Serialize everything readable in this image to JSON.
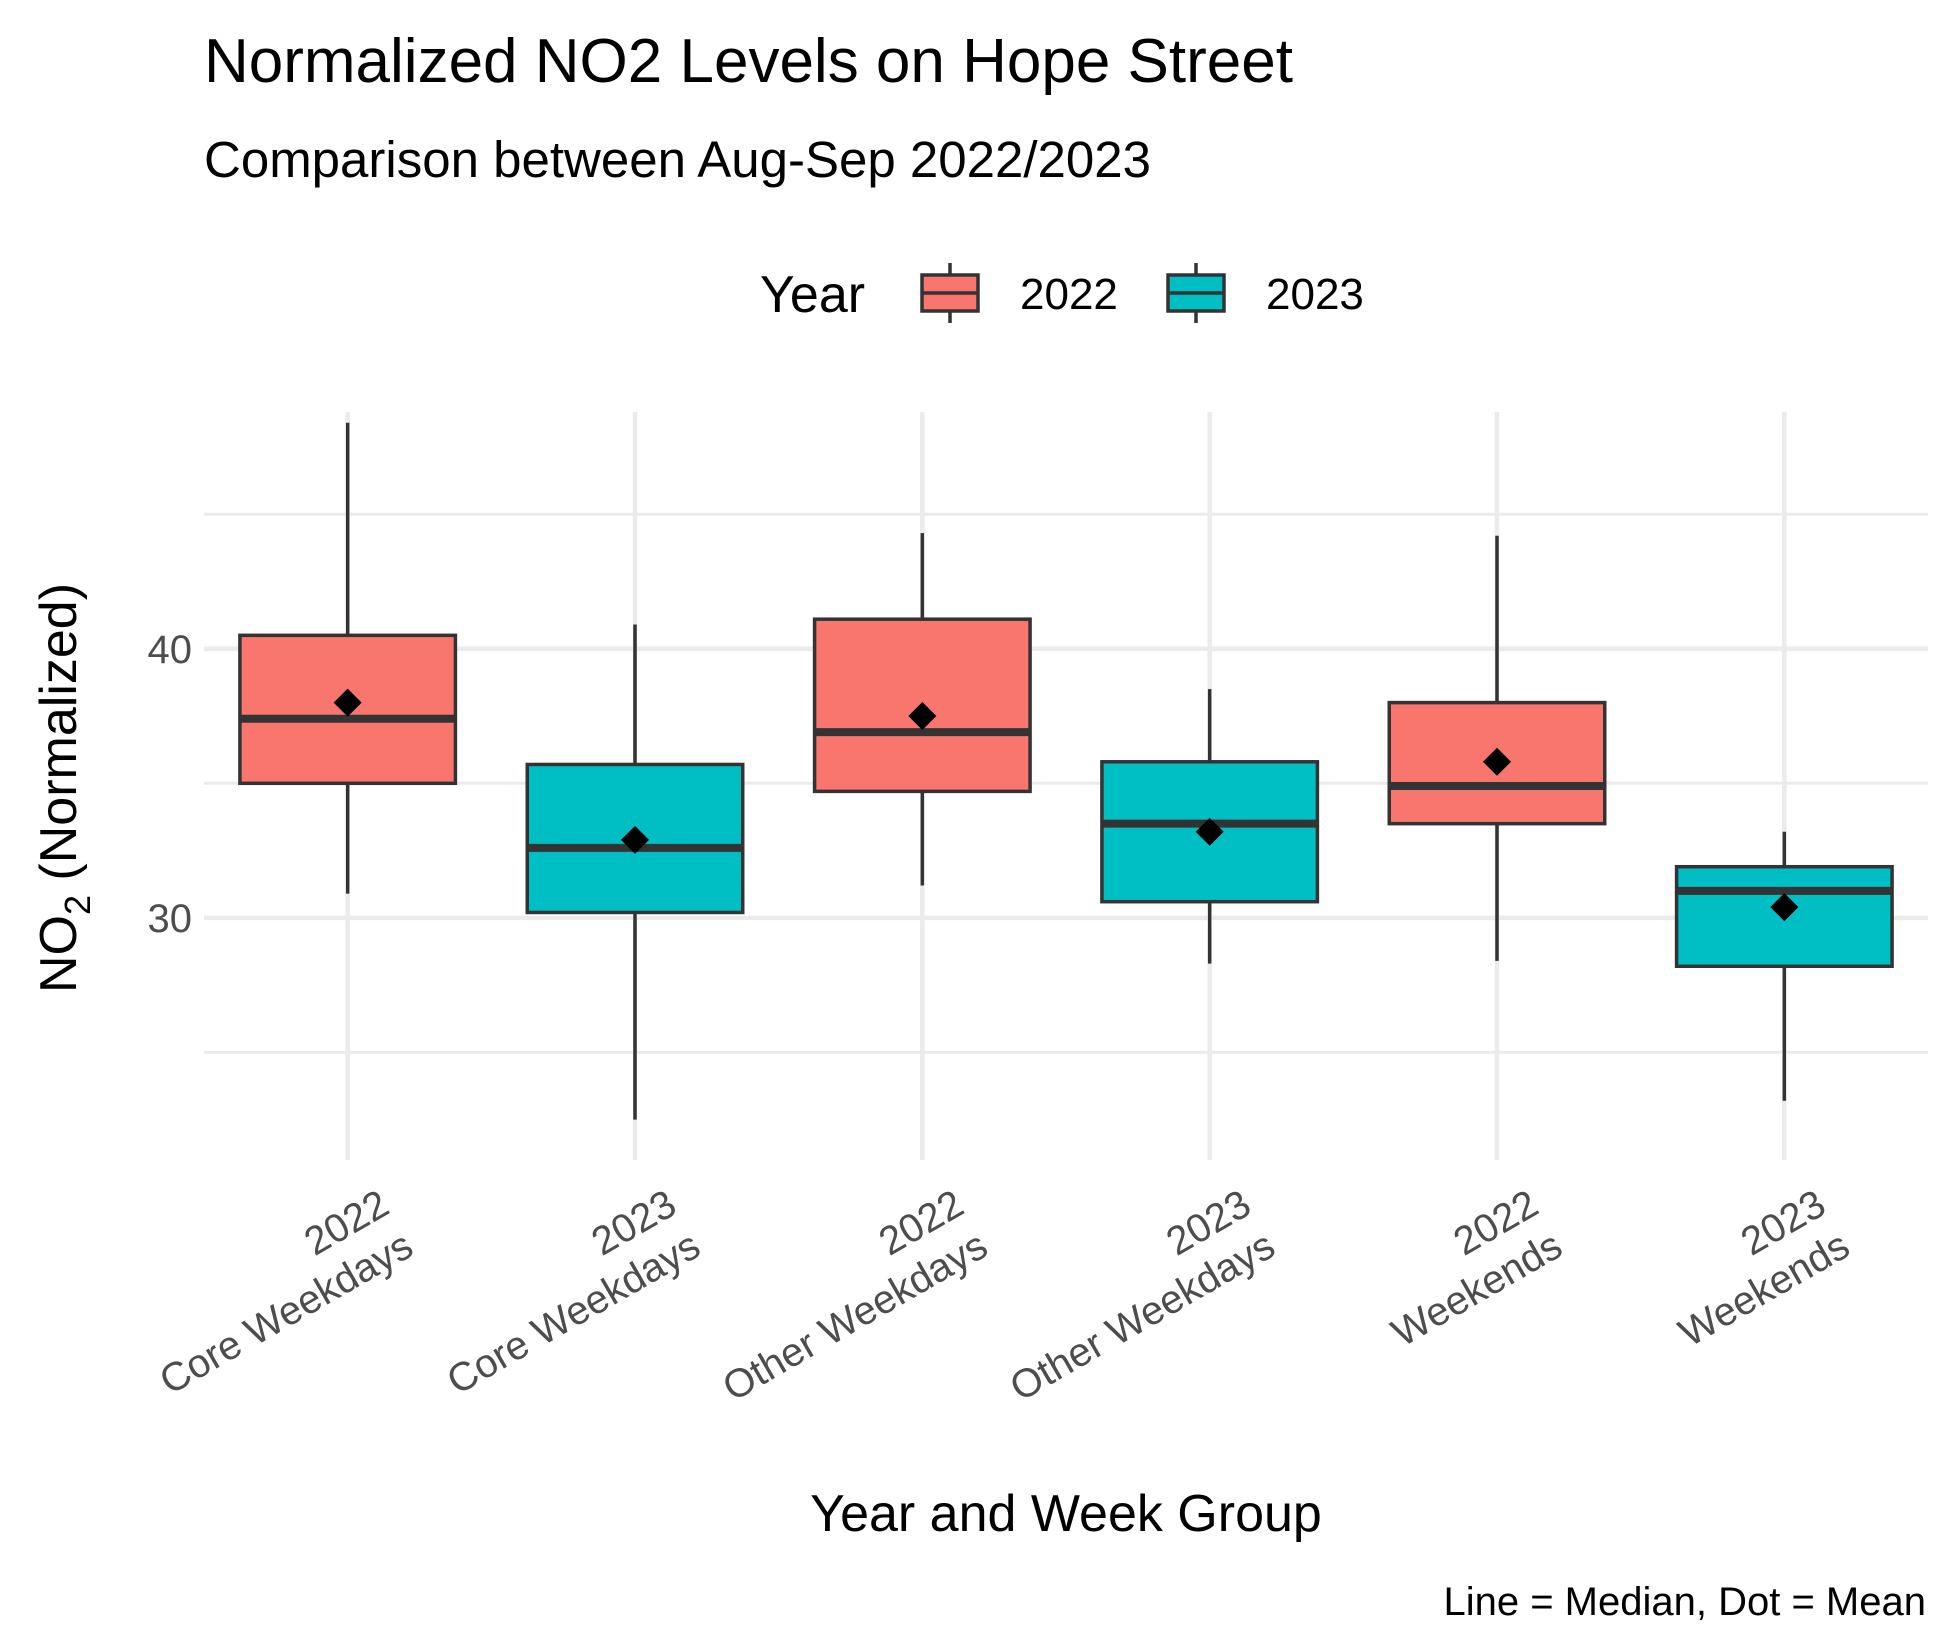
{
  "chart_data": {
    "type": "boxplot",
    "title": "Normalized NO2 Levels on Hope Street",
    "subtitle": "Comparison between Aug-Sep 2022/2023",
    "xlabel": "Year and Week Group",
    "ylabel_main": "NO",
    "ylabel_sub": "2",
    "ylabel_rest": " (Normalized)",
    "caption": "Line = Median, Dot = Mean",
    "ylim": [
      21,
      48.8
    ],
    "y_ticks": [
      30,
      40
    ],
    "y_minor_ticks": [
      25,
      35,
      45
    ],
    "grid": true,
    "legend": {
      "title": "Year",
      "position": "top",
      "entries": [
        {
          "label": "2022",
          "color": "#F8766D"
        },
        {
          "label": "2023",
          "color": "#00BFC4"
        }
      ]
    },
    "categories": [
      {
        "line1": "2022",
        "line2": "Core Weekdays",
        "year": "2022",
        "color": "#F8766D",
        "ymin": 30.9,
        "q1": 35.0,
        "median": 37.4,
        "q3": 40.5,
        "ymax": 48.4,
        "mean": 38.0
      },
      {
        "line1": "2023",
        "line2": "Core Weekdays",
        "year": "2023",
        "color": "#00BFC4",
        "ymin": 22.5,
        "q1": 30.2,
        "median": 32.6,
        "q3": 35.7,
        "ymax": 40.9,
        "mean": 32.9
      },
      {
        "line1": "2022",
        "line2": "Other Weekdays",
        "year": "2022",
        "color": "#F8766D",
        "ymin": 31.2,
        "q1": 34.7,
        "median": 36.9,
        "q3": 41.1,
        "ymax": 44.3,
        "mean": 37.5
      },
      {
        "line1": "2023",
        "line2": "Other Weekdays",
        "year": "2023",
        "color": "#00BFC4",
        "ymin": 28.3,
        "q1": 30.6,
        "median": 33.5,
        "q3": 35.8,
        "ymax": 38.5,
        "mean": 33.2
      },
      {
        "line1": "2022",
        "line2": "Weekends",
        "year": "2022",
        "color": "#F8766D",
        "ymin": 28.4,
        "q1": 33.5,
        "median": 34.9,
        "q3": 38.0,
        "ymax": 44.2,
        "mean": 35.8
      },
      {
        "line1": "2023",
        "line2": "Weekends",
        "year": "2023",
        "color": "#00BFC4",
        "ymin": 23.2,
        "q1": 28.2,
        "median": 31.0,
        "q3": 31.9,
        "ymax": 33.2,
        "mean": 30.4
      }
    ]
  }
}
